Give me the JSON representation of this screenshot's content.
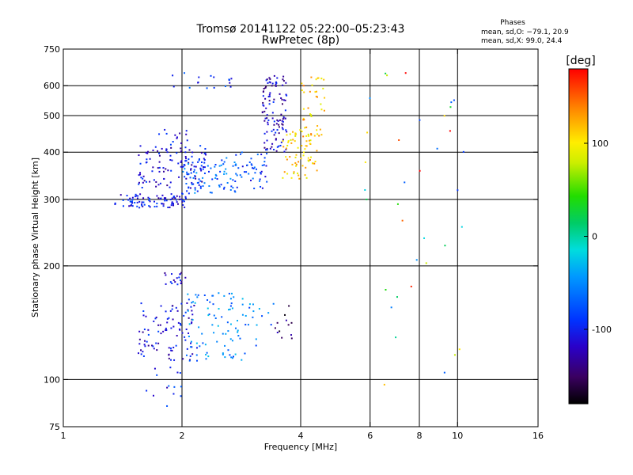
{
  "chart_data": {
    "type": "scatter",
    "title": "Tromsø 20141122 05:22:00–05:23:43",
    "subtitle": "RwPretec (8p)",
    "xlabel": "Frequency [MHz]",
    "ylabel": "Stationary phase Virtual Height [km]",
    "x_scale": "log",
    "y_scale": "log",
    "xlim": [
      1,
      16
    ],
    "ylim": [
      75,
      750
    ],
    "xticks": [
      1,
      2,
      4,
      6,
      8,
      10,
      16
    ],
    "xtick_labels": [
      "1",
      "2",
      "4",
      "6",
      "8",
      "10",
      "16"
    ],
    "yticks": [
      75,
      100,
      200,
      300,
      400,
      500,
      600,
      750
    ],
    "ytick_labels": [
      "75",
      "100",
      "200",
      "300",
      "400",
      "500",
      "600",
      "750"
    ],
    "grid_x": [
      2,
      4,
      6,
      8,
      10
    ],
    "grid_y": [
      100,
      200,
      300,
      400,
      500,
      600
    ],
    "stats": {
      "header": "Phases",
      "line1": "mean, sd,O: −79.1, 20.9",
      "line2": "mean, sd,X:  99.0, 24.4"
    },
    "colorbar": {
      "label": "[deg]",
      "range": [
        -180,
        180
      ],
      "ticks": [
        100,
        0,
        -100
      ],
      "tick_labels": [
        "100",
        "0",
        "-100"
      ]
    },
    "point_groups": [
      {
        "f_range": [
          1.35,
          2.05
        ],
        "h_range": [
          285,
          310
        ],
        "phase": -105,
        "count": 90
      },
      {
        "f_range": [
          1.55,
          2.3
        ],
        "h_range": [
          320,
          420
        ],
        "phase": -110,
        "count": 110
      },
      {
        "f_range": [
          1.7,
          2.1
        ],
        "h_range": [
          420,
          460
        ],
        "phase": -115,
        "count": 12
      },
      {
        "f_range": [
          2.0,
          2.8
        ],
        "h_range": [
          310,
          390
        ],
        "phase": -70,
        "count": 85
      },
      {
        "f_range": [
          2.7,
          3.3
        ],
        "h_range": [
          320,
          400
        ],
        "phase": -85,
        "count": 45
      },
      {
        "f_range": [
          3.2,
          3.7
        ],
        "h_range": [
          400,
          640
        ],
        "phase": -118,
        "count": 110
      },
      {
        "f_range": [
          3.6,
          4.4
        ],
        "h_range": [
          340,
          460
        ],
        "phase": 110,
        "count": 70
      },
      {
        "f_range": [
          4.0,
          4.6
        ],
        "h_range": [
          440,
          640
        ],
        "phase": 115,
        "count": 40
      },
      {
        "f_range": [
          1.8,
          2.7
        ],
        "h_range": [
          590,
          650
        ],
        "phase": -90,
        "count": 18
      },
      {
        "f_range": [
          1.55,
          2.2
        ],
        "h_range": [
          112,
          160
        ],
        "phase": -110,
        "count": 95
      },
      {
        "f_range": [
          2.05,
          2.9
        ],
        "h_range": [
          112,
          170
        ],
        "phase": -55,
        "count": 85
      },
      {
        "f_range": [
          1.8,
          2.05
        ],
        "h_range": [
          178,
          192
        ],
        "phase": -115,
        "count": 18
      },
      {
        "f_range": [
          2.9,
          3.5
        ],
        "h_range": [
          118,
          160
        ],
        "phase": -60,
        "count": 15
      },
      {
        "f_range": [
          3.4,
          3.8
        ],
        "h_range": [
          125,
          160
        ],
        "phase": -150,
        "count": 12
      },
      {
        "f_range": [
          1.6,
          2.0
        ],
        "h_range": [
          85,
          108
        ],
        "phase": -100,
        "count": 14
      },
      {
        "f_range": [
          5.5,
          10.5
        ],
        "h_range": [
          80,
          680
        ],
        "phase": 60,
        "count": 36
      }
    ]
  }
}
